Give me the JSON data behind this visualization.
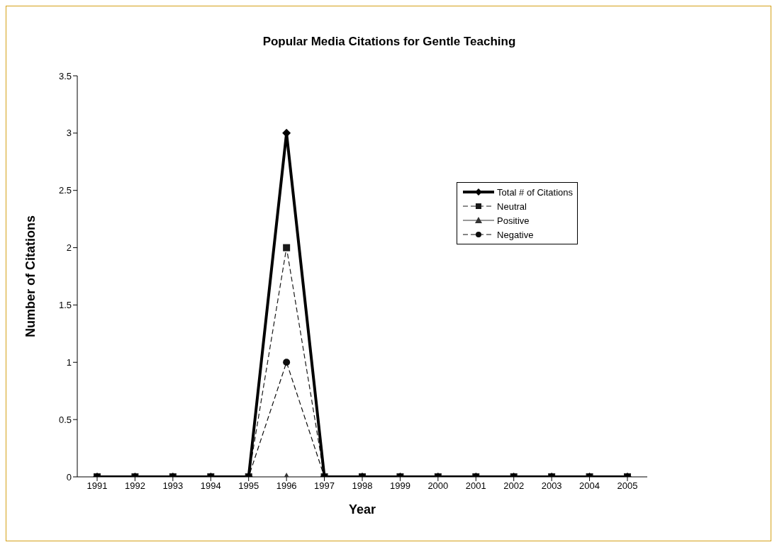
{
  "chart_data": {
    "type": "line",
    "title": "Popular Media Citations for Gentle Teaching",
    "xlabel": "Year",
    "ylabel": "Number of Citations",
    "categories": [
      "1991",
      "1992",
      "1993",
      "1994",
      "1995",
      "1996",
      "1997",
      "1998",
      "1999",
      "2000",
      "2001",
      "2002",
      "2003",
      "2004",
      "2005"
    ],
    "series": [
      {
        "name": "Total # of Citations",
        "color": "#000000",
        "marker": "diamond",
        "line_style": "solid",
        "values": [
          0,
          0,
          0,
          0,
          0,
          3,
          0,
          0,
          0,
          0,
          0,
          0,
          0,
          0,
          0
        ]
      },
      {
        "name": "Neutral",
        "color": "#1a1a1a",
        "marker": "square",
        "line_style": "dashed",
        "values": [
          0,
          0,
          0,
          0,
          0,
          2,
          0,
          0,
          0,
          0,
          0,
          0,
          0,
          0,
          0
        ]
      },
      {
        "name": "Positive",
        "color": "#333333",
        "marker": "triangle",
        "line_style": "solid",
        "values": [
          null,
          null,
          null,
          null,
          null,
          0,
          null,
          null,
          null,
          null,
          null,
          null,
          null,
          null,
          null
        ]
      },
      {
        "name": "Negative",
        "color": "#0d0d0d",
        "marker": "circle",
        "line_style": "dashed",
        "values": [
          0,
          0,
          0,
          0,
          0,
          1,
          0,
          0,
          0,
          0,
          0,
          0,
          0,
          0,
          0
        ]
      }
    ],
    "ylim": [
      0,
      3.5
    ],
    "yticks": [
      0,
      0.5,
      1,
      1.5,
      2,
      2.5,
      3,
      3.5
    ],
    "grid": false,
    "legend": "top right"
  }
}
